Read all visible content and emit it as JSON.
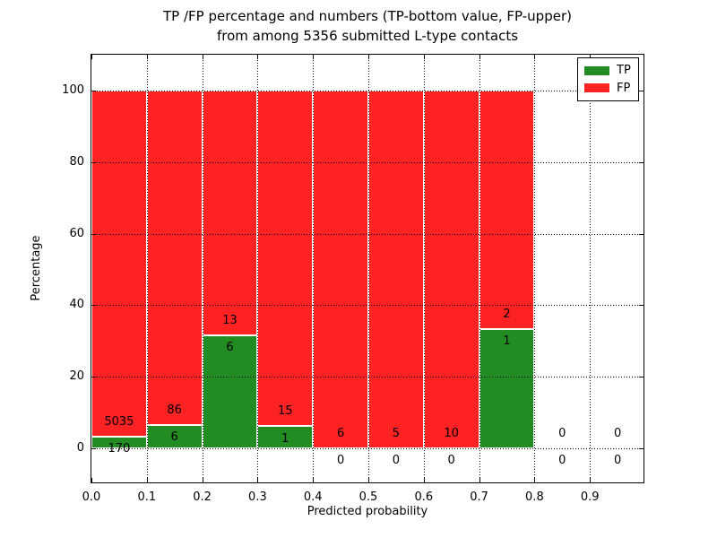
{
  "title": {
    "line1": "TP /FP percentage and numbers (TP-bottom value, FP-upper)",
    "line2": "from among 5356 submitted L-type contacts"
  },
  "chart_data": {
    "type": "bar",
    "stacked": true,
    "normalized_to_percent": true,
    "title": "TP /FP percentage and numbers (TP-bottom value, FP-upper) from among 5356 submitted L-type contacts",
    "xlabel": "Predicted probability",
    "ylabel": "Percentage",
    "xlim": [
      0.0,
      1.0
    ],
    "ylim": [
      -10,
      110
    ],
    "xticks": [
      "0.0",
      "0.1",
      "0.2",
      "0.3",
      "0.4",
      "0.5",
      "0.6",
      "0.7",
      "0.8",
      "0.9"
    ],
    "yticks": [
      0,
      20,
      40,
      60,
      80,
      100
    ],
    "grid": true,
    "grid_style": "dotted",
    "legend_position": "upper right",
    "legend": [
      {
        "label": "TP",
        "color": "#228b22"
      },
      {
        "label": "FP",
        "color": "#ff2222"
      }
    ],
    "total_contacts": 5356,
    "bins": [
      {
        "bin": "0.0-0.1",
        "tp": 170,
        "fp": 5035,
        "tp_pct": 3.27
      },
      {
        "bin": "0.1-0.2",
        "tp": 6,
        "fp": 86,
        "tp_pct": 6.52
      },
      {
        "bin": "0.2-0.3",
        "tp": 6,
        "fp": 13,
        "tp_pct": 31.58
      },
      {
        "bin": "0.3-0.4",
        "tp": 1,
        "fp": 15,
        "tp_pct": 6.25
      },
      {
        "bin": "0.4-0.5",
        "tp": 0,
        "fp": 6,
        "tp_pct": 0
      },
      {
        "bin": "0.5-0.6",
        "tp": 0,
        "fp": 5,
        "tp_pct": 0
      },
      {
        "bin": "0.6-0.7",
        "tp": 0,
        "fp": 10,
        "tp_pct": 0
      },
      {
        "bin": "0.7-0.8",
        "tp": 1,
        "fp": 2,
        "tp_pct": 33.33
      },
      {
        "bin": "0.8-0.9",
        "tp": 0,
        "fp": 0,
        "tp_pct": null
      },
      {
        "bin": "0.9-1.0",
        "tp": 0,
        "fp": 0,
        "tp_pct": null
      }
    ]
  }
}
